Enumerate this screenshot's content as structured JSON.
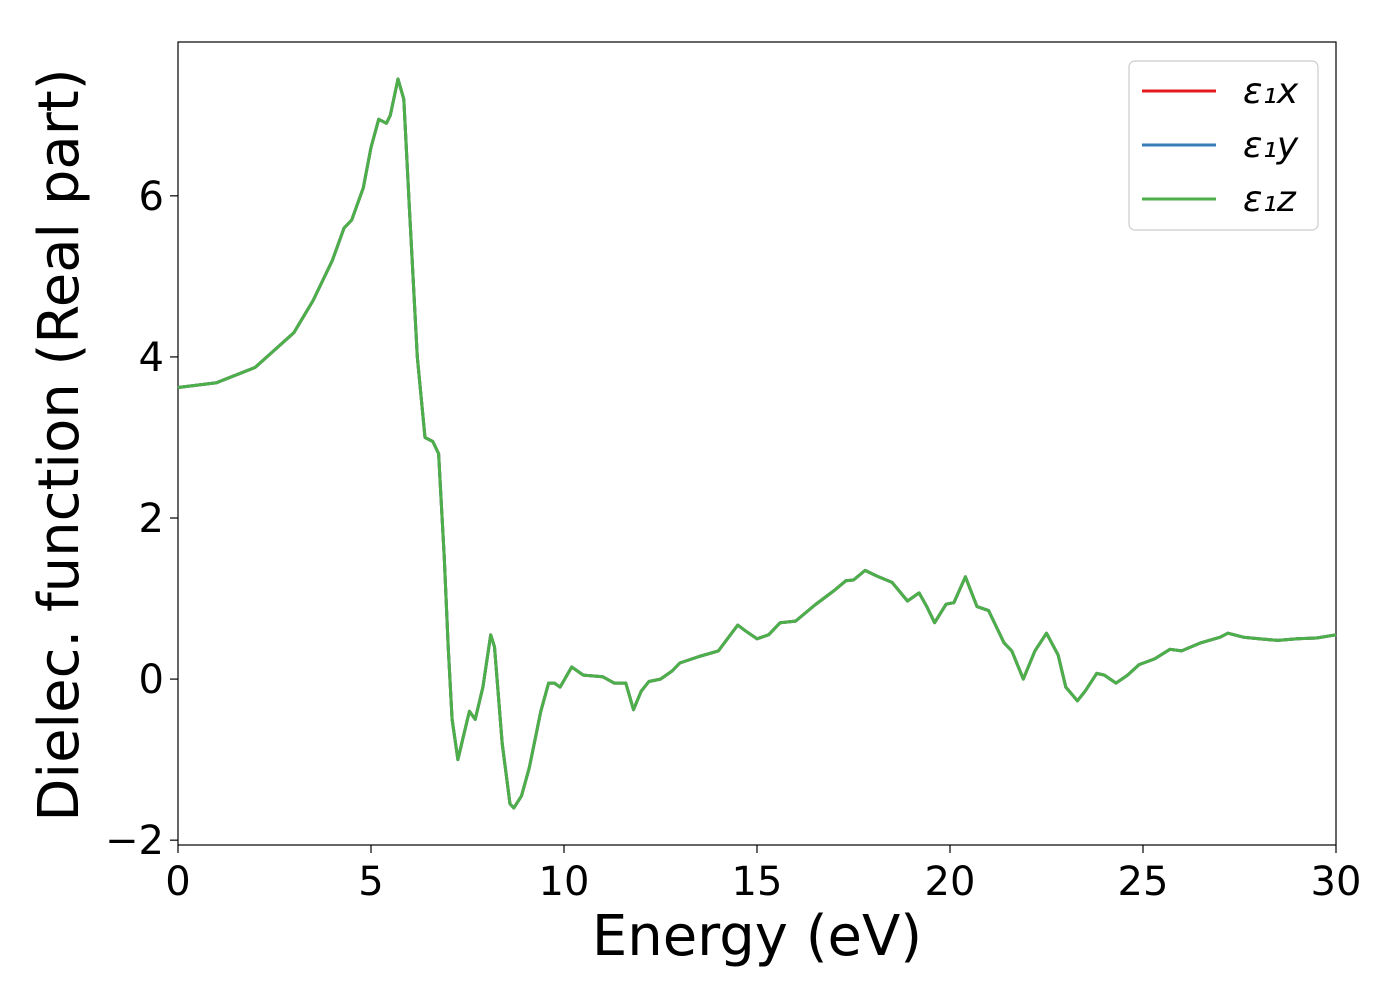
{
  "chart_data": {
    "type": "line",
    "xlabel": "Energy (eV)",
    "ylabel": "Dielec. function (Real part)",
    "xlim": [
      0,
      30
    ],
    "ylim": [
      -2.06,
      7.91
    ],
    "xticks": [
      0,
      5,
      10,
      15,
      20,
      25,
      30
    ],
    "yticks": [
      {
        "value": -2,
        "label": "−2"
      },
      0,
      2,
      4,
      6
    ],
    "legend": "upper right",
    "x": [
      0,
      1,
      2,
      3,
      3.5,
      4,
      4.3,
      4.5,
      4.8,
      5,
      5.2,
      5.4,
      5.5,
      5.7,
      5.85,
      6,
      6.2,
      6.4,
      6.6,
      6.75,
      6.9,
      7,
      7.1,
      7.25,
      7.4,
      7.55,
      7.7,
      7.9,
      8.1,
      8.2,
      8.4,
      8.6,
      8.7,
      8.9,
      9.1,
      9.4,
      9.6,
      9.75,
      9.9,
      10.2,
      10.5,
      11,
      11.3,
      11.6,
      11.8,
      12,
      12.2,
      12.5,
      12.8,
      13,
      13.5,
      14,
      14.5,
      14.7,
      15,
      15.3,
      15.6,
      16,
      16.5,
      17,
      17.3,
      17.5,
      17.8,
      18.1,
      18.5,
      18.9,
      19.2,
      19.4,
      19.6,
      19.9,
      20.1,
      20.4,
      20.7,
      21,
      21.4,
      21.6,
      21.9,
      22.2,
      22.5,
      22.8,
      23,
      23.3,
      23.5,
      23.8,
      24,
      24.3,
      24.6,
      24.9,
      25.3,
      25.7,
      26,
      26.5,
      27,
      27.2,
      27.6,
      28,
      28.5,
      29,
      29.5,
      30
    ],
    "series": [
      {
        "name": "ε₁x",
        "color": "#e41a1c",
        "values": [
          3.62,
          3.68,
          3.87,
          4.3,
          4.7,
          5.2,
          5.6,
          5.7,
          6.1,
          6.6,
          6.95,
          6.9,
          7.0,
          7.45,
          7.2,
          5.8,
          4.0,
          3.0,
          2.95,
          2.8,
          1.5,
          0.4,
          -0.5,
          -1.0,
          -0.7,
          -0.4,
          -0.5,
          -0.1,
          0.55,
          0.4,
          -0.8,
          -1.55,
          -1.6,
          -1.45,
          -1.1,
          -0.4,
          -0.05,
          -0.05,
          -0.1,
          0.15,
          0.05,
          0.03,
          -0.05,
          -0.05,
          -0.38,
          -0.15,
          -0.03,
          0.0,
          0.1,
          0.2,
          0.28,
          0.35,
          0.67,
          0.6,
          0.5,
          0.55,
          0.7,
          0.72,
          0.92,
          1.1,
          1.22,
          1.23,
          1.35,
          1.28,
          1.2,
          0.97,
          1.07,
          0.9,
          0.7,
          0.93,
          0.95,
          1.27,
          0.9,
          0.85,
          0.45,
          0.35,
          0.0,
          0.35,
          0.57,
          0.3,
          -0.1,
          -0.27,
          -0.15,
          0.07,
          0.05,
          -0.05,
          0.05,
          0.18,
          0.25,
          0.37,
          0.35,
          0.45,
          0.52,
          0.57,
          0.52,
          0.5,
          0.48,
          0.5,
          0.51,
          0.55
        ]
      },
      {
        "name": "ε₁y",
        "color": "#377eb8",
        "values": [
          3.62,
          3.68,
          3.87,
          4.3,
          4.7,
          5.2,
          5.6,
          5.7,
          6.1,
          6.6,
          6.95,
          6.9,
          7.0,
          7.45,
          7.2,
          5.8,
          4.0,
          3.0,
          2.95,
          2.8,
          1.5,
          0.4,
          -0.5,
          -1.0,
          -0.7,
          -0.4,
          -0.5,
          -0.1,
          0.55,
          0.4,
          -0.8,
          -1.55,
          -1.6,
          -1.45,
          -1.1,
          -0.4,
          -0.05,
          -0.05,
          -0.1,
          0.15,
          0.05,
          0.03,
          -0.05,
          -0.05,
          -0.38,
          -0.15,
          -0.03,
          0.0,
          0.1,
          0.2,
          0.28,
          0.35,
          0.67,
          0.6,
          0.5,
          0.55,
          0.7,
          0.72,
          0.92,
          1.1,
          1.22,
          1.23,
          1.35,
          1.28,
          1.2,
          0.97,
          1.07,
          0.9,
          0.7,
          0.93,
          0.95,
          1.27,
          0.9,
          0.85,
          0.45,
          0.35,
          0.0,
          0.35,
          0.57,
          0.3,
          -0.1,
          -0.27,
          -0.15,
          0.07,
          0.05,
          -0.05,
          0.05,
          0.18,
          0.25,
          0.37,
          0.35,
          0.45,
          0.52,
          0.57,
          0.52,
          0.5,
          0.48,
          0.5,
          0.51,
          0.55
        ]
      },
      {
        "name": "ε₁z",
        "color": "#4daf4a",
        "values": [
          3.62,
          3.68,
          3.87,
          4.3,
          4.7,
          5.2,
          5.6,
          5.7,
          6.1,
          6.6,
          6.95,
          6.9,
          7.0,
          7.45,
          7.2,
          5.8,
          4.0,
          3.0,
          2.95,
          2.8,
          1.5,
          0.4,
          -0.5,
          -1.0,
          -0.7,
          -0.4,
          -0.5,
          -0.1,
          0.55,
          0.4,
          -0.8,
          -1.55,
          -1.6,
          -1.45,
          -1.1,
          -0.4,
          -0.05,
          -0.05,
          -0.1,
          0.15,
          0.05,
          0.03,
          -0.05,
          -0.05,
          -0.38,
          -0.15,
          -0.03,
          0.0,
          0.1,
          0.2,
          0.28,
          0.35,
          0.67,
          0.6,
          0.5,
          0.55,
          0.7,
          0.72,
          0.92,
          1.1,
          1.22,
          1.23,
          1.35,
          1.28,
          1.2,
          0.97,
          1.07,
          0.9,
          0.7,
          0.93,
          0.95,
          1.27,
          0.9,
          0.85,
          0.45,
          0.35,
          0.0,
          0.35,
          0.57,
          0.3,
          -0.1,
          -0.27,
          -0.15,
          0.07,
          0.05,
          -0.05,
          0.05,
          0.18,
          0.25,
          0.37,
          0.35,
          0.45,
          0.52,
          0.57,
          0.52,
          0.5,
          0.48,
          0.5,
          0.51,
          0.55
        ]
      }
    ]
  }
}
